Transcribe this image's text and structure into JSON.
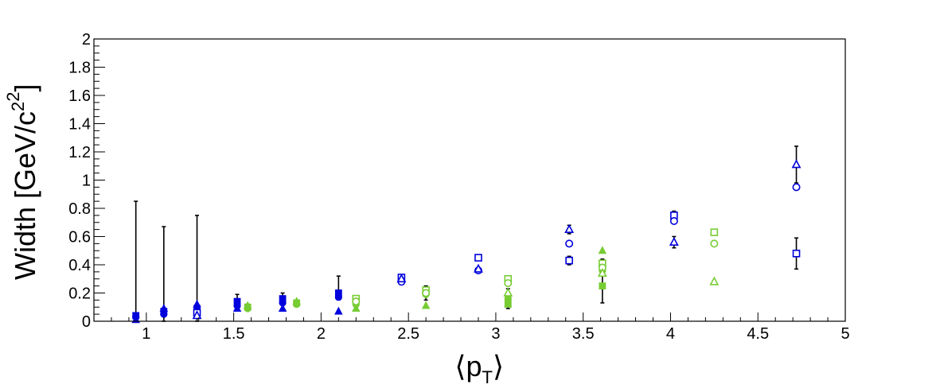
{
  "chart_data": {
    "type": "scatter",
    "title": "",
    "xlabel": "⟨p_T⟩",
    "ylabel": "Width [GeV/c²]",
    "xlabel_parts": {
      "main": "⟨p",
      "sub": "T",
      "end": "⟩"
    },
    "ylabel_parts": {
      "main": "Width [GeV/c",
      "sup1": "2",
      "sup2": "2",
      "end": "]"
    },
    "xlim": [
      0.7,
      5.0
    ],
    "ylim": [
      0,
      2.0
    ],
    "x_ticks": [
      1,
      1.5,
      2,
      2.5,
      3,
      3.5,
      4,
      4.5,
      5
    ],
    "x_tick_labels": [
      "1",
      "1.5",
      "2",
      "2.5",
      "3",
      "3.5",
      "4",
      "4.5",
      "5"
    ],
    "y_ticks": [
      0,
      0.2,
      0.4,
      0.6,
      0.8,
      1.0,
      1.2,
      1.4,
      1.6,
      1.8,
      2.0
    ],
    "y_tick_labels": [
      "0",
      "0.2",
      "0.4",
      "0.6",
      "0.8",
      "1",
      "1.2",
      "1.4",
      "1.6",
      "1.8",
      "2"
    ],
    "grid": false,
    "legend": "none",
    "colors": {
      "blue": "#0000dd",
      "green": "#77cc33",
      "error": "#000000"
    },
    "series": [
      {
        "marker": "square",
        "filled": true,
        "color": "blue",
        "points": [
          {
            "x": 0.94,
            "y": 0.04,
            "yerr": [
              0.04,
              0.81
            ]
          },
          {
            "x": 1.1,
            "y": 0.07,
            "yerr": [
              0.07,
              0.6
            ]
          },
          {
            "x": 1.29,
            "y": 0.09,
            "yerr": [
              0.09,
              0.66
            ]
          },
          {
            "x": 1.52,
            "y": 0.14,
            "yerr": [
              0.04,
              0.05
            ]
          },
          {
            "x": 1.78,
            "y": 0.16,
            "yerr": [
              0.03,
              0.04
            ]
          },
          {
            "x": 2.1,
            "y": 0.2,
            "yerr": [
              0.04,
              0.12
            ]
          }
        ]
      },
      {
        "marker": "circle",
        "filled": true,
        "color": "blue",
        "points": [
          {
            "x": 0.94,
            "y": 0.03
          },
          {
            "x": 1.1,
            "y": 0.05
          },
          {
            "x": 1.29,
            "y": 0.08
          },
          {
            "x": 1.52,
            "y": 0.11
          },
          {
            "x": 1.78,
            "y": 0.13
          },
          {
            "x": 2.1,
            "y": 0.17
          }
        ]
      },
      {
        "marker": "triangle",
        "filled": true,
        "color": "blue",
        "points": [
          {
            "x": 0.94,
            "y": 0.01
          },
          {
            "x": 1.1,
            "y": 0.09
          },
          {
            "x": 1.29,
            "y": 0.12
          },
          {
            "x": 1.52,
            "y": 0.09
          },
          {
            "x": 1.78,
            "y": 0.09
          },
          {
            "x": 2.1,
            "y": 0.07
          }
        ]
      },
      {
        "marker": "square",
        "filled": false,
        "color": "blue",
        "points": [
          {
            "x": 1.29,
            "y": 0.06
          },
          {
            "x": 2.46,
            "y": 0.31
          },
          {
            "x": 2.9,
            "y": 0.45
          },
          {
            "x": 3.42,
            "y": 0.43,
            "yerr": [
              0.03,
              0.03
            ]
          },
          {
            "x": 4.02,
            "y": 0.75,
            "yerr": [
              0.03,
              0.03
            ]
          },
          {
            "x": 4.72,
            "y": 0.48,
            "yerr": [
              0.11,
              0.11
            ]
          }
        ]
      },
      {
        "marker": "circle",
        "filled": false,
        "color": "blue",
        "points": [
          {
            "x": 2.46,
            "y": 0.28
          },
          {
            "x": 2.9,
            "y": 0.36
          },
          {
            "x": 3.42,
            "y": 0.55
          },
          {
            "x": 4.02,
            "y": 0.71
          },
          {
            "x": 4.72,
            "y": 0.95
          }
        ]
      },
      {
        "marker": "triangle",
        "filled": false,
        "color": "blue",
        "points": [
          {
            "x": 1.29,
            "y": 0.04
          },
          {
            "x": 2.46,
            "y": 0.3
          },
          {
            "x": 2.9,
            "y": 0.37
          },
          {
            "x": 3.42,
            "y": 0.65,
            "yerr": [
              0.03,
              0.03
            ]
          },
          {
            "x": 4.02,
            "y": 0.56,
            "yerr": [
              0.04,
              0.04
            ]
          },
          {
            "x": 4.72,
            "y": 1.11,
            "yerr": [
              0.13,
              0.13
            ]
          }
        ]
      },
      {
        "marker": "square",
        "filled": true,
        "color": "green",
        "points": [
          {
            "x": 1.58,
            "y": 0.1,
            "yerr": [
              0.02,
              0.02
            ]
          },
          {
            "x": 1.86,
            "y": 0.13,
            "yerr": [
              0.02,
              0.02
            ]
          },
          {
            "x": 2.2,
            "y": 0.14,
            "yerr": [
              0.04,
              0.04
            ]
          },
          {
            "x": 2.6,
            "y": 0.21,
            "yerr": [
              0.06,
              0.04
            ]
          },
          {
            "x": 3.07,
            "y": 0.13,
            "yerr": [
              0.04,
              0.04
            ]
          },
          {
            "x": 3.61,
            "y": 0.25,
            "yerr": [
              0.12,
              0.12
            ]
          }
        ]
      },
      {
        "marker": "circle",
        "filled": true,
        "color": "green",
        "points": [
          {
            "x": 1.58,
            "y": 0.09
          },
          {
            "x": 1.86,
            "y": 0.12
          },
          {
            "x": 2.2,
            "y": 0.12
          },
          {
            "x": 2.6,
            "y": 0.19
          },
          {
            "x": 3.07,
            "y": 0.16
          },
          {
            "x": 3.61,
            "y": 0.36
          }
        ]
      },
      {
        "marker": "triangle",
        "filled": true,
        "color": "green",
        "points": [
          {
            "x": 1.58,
            "y": 0.11
          },
          {
            "x": 1.86,
            "y": 0.14
          },
          {
            "x": 2.2,
            "y": 0.09
          },
          {
            "x": 2.6,
            "y": 0.11
          },
          {
            "x": 3.07,
            "y": 0.12
          },
          {
            "x": 3.61,
            "y": 0.5
          }
        ]
      },
      {
        "marker": "square",
        "filled": false,
        "color": "green",
        "points": [
          {
            "x": 2.2,
            "y": 0.16
          },
          {
            "x": 2.6,
            "y": 0.22
          },
          {
            "x": 3.07,
            "y": 0.3,
            "yerr": [
              0.02,
              0.02
            ]
          },
          {
            "x": 3.61,
            "y": 0.41,
            "yerr": [
              0.03,
              0.03
            ]
          },
          {
            "x": 4.25,
            "y": 0.63
          }
        ]
      },
      {
        "marker": "circle",
        "filled": false,
        "color": "green",
        "points": [
          {
            "x": 2.2,
            "y": 0.14
          },
          {
            "x": 2.6,
            "y": 0.2
          },
          {
            "x": 3.07,
            "y": 0.27
          },
          {
            "x": 3.61,
            "y": 0.38
          },
          {
            "x": 4.25,
            "y": 0.55
          }
        ]
      },
      {
        "marker": "triangle",
        "filled": false,
        "color": "green",
        "points": [
          {
            "x": 3.07,
            "y": 0.2,
            "yerr": [
              0.03,
              0.03
            ]
          },
          {
            "x": 3.61,
            "y": 0.34
          },
          {
            "x": 4.25,
            "y": 0.28
          }
        ]
      }
    ]
  }
}
